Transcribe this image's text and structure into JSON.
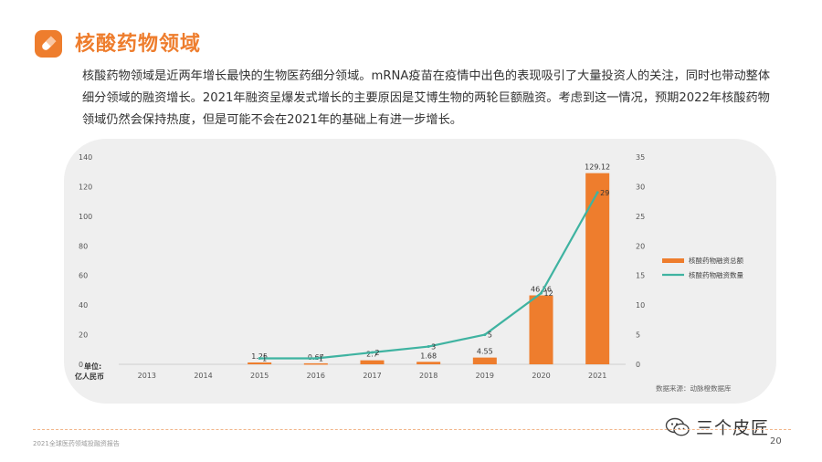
{
  "title": "核酸药物领域",
  "intro": "核酸药物领域是近两年增长最快的生物医药细分领域。mRNA疫苗在疫情中出色的表现吸引了大量投资人的关注，同时也带动整体细分领域的融资增长。2021年融资呈爆发式增长的主要原因是艾博生物的两轮巨额融资。考虑到这一情况，预期2022年核酸药物领域仍然会保持热度，但是可能不会在2021年的基础上有进一步增长。",
  "chart_data": {
    "type": "bar",
    "categories": [
      "2013",
      "2014",
      "2015",
      "2016",
      "2017",
      "2018",
      "2019",
      "2020",
      "2021"
    ],
    "series": [
      {
        "name": "核酸药物融资总额",
        "type": "bar",
        "axis": "left",
        "color": "#ee7d2d",
        "values": [
          null,
          null,
          1.25,
          0.67,
          2.7,
          1.68,
          4.55,
          46.56,
          129.12
        ],
        "labels": [
          "",
          "",
          "1.25",
          "0.67",
          "2.7",
          "1.68",
          "4.55",
          "46.56",
          "129.12"
        ]
      },
      {
        "name": "核酸药物融资数量",
        "type": "line",
        "axis": "right",
        "color": "#3fb3a1",
        "values": [
          null,
          null,
          1,
          1,
          2,
          3,
          5,
          12,
          29
        ],
        "labels": [
          "",
          "",
          "1",
          "1",
          "2",
          "3",
          "5",
          "12",
          "29"
        ]
      }
    ],
    "y_left": {
      "min": 0,
      "max": 140,
      "ticks": [
        "0",
        "20",
        "40",
        "60",
        "80",
        "100",
        "120",
        "140"
      ]
    },
    "y_right": {
      "min": 0,
      "max": 35,
      "ticks": [
        "0",
        "5",
        "10",
        "15",
        "20",
        "25",
        "30",
        "35"
      ]
    },
    "unit_label_line1": "单位:",
    "unit_label_line2": "亿人民币",
    "legend_position": "right",
    "source": "数据来源：动脉橙数据库"
  },
  "footer": {
    "report_name": "2021全球医药领域投融资报告",
    "page_number": "20"
  },
  "watermark": "三个皮匠",
  "colors": {
    "accent": "#ee7d2d",
    "line": "#3fb3a1",
    "panel": "#efefef"
  }
}
